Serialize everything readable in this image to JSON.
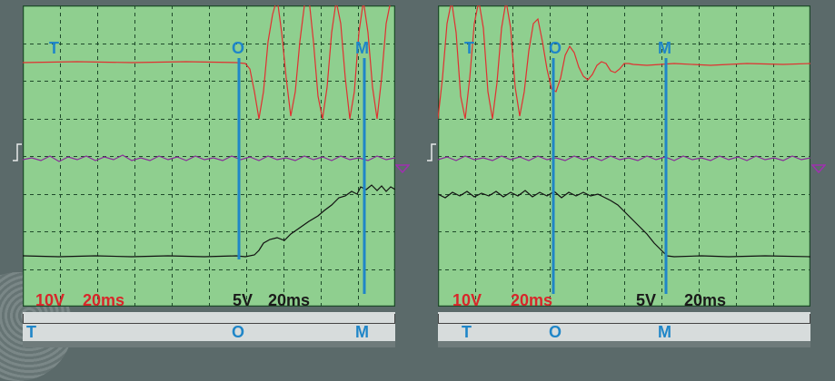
{
  "panels": [
    {
      "id": "left",
      "top_markers": {
        "t": "T",
        "o": "O",
        "m": "M"
      },
      "bottom_markers": {
        "t": "T",
        "o": "O",
        "m": "M"
      },
      "scale": {
        "ch1_volts": "10V",
        "ch1_time": "20ms",
        "ch2_volts": "5V",
        "ch2_time": "20ms"
      }
    },
    {
      "id": "right",
      "top_markers": {
        "t": "T",
        "o": "O",
        "m": "M"
      },
      "bottom_markers": {
        "t": "T",
        "o": "O",
        "m": "M"
      },
      "scale": {
        "ch1_volts": "10V",
        "ch1_time": "20ms",
        "ch2_volts": "5V",
        "ch2_time": "20ms"
      }
    }
  ],
  "colors": {
    "screen": "#8fcf8f",
    "grid": "#1e4a2a",
    "trace_red": "#e03030",
    "trace_purple": "#8a2a9a",
    "trace_black": "#111111",
    "cursor_blue": "#1f86c8"
  },
  "icons": {
    "trigger": "trigger-step-icon",
    "ground": "ground-arrow-icon"
  }
}
